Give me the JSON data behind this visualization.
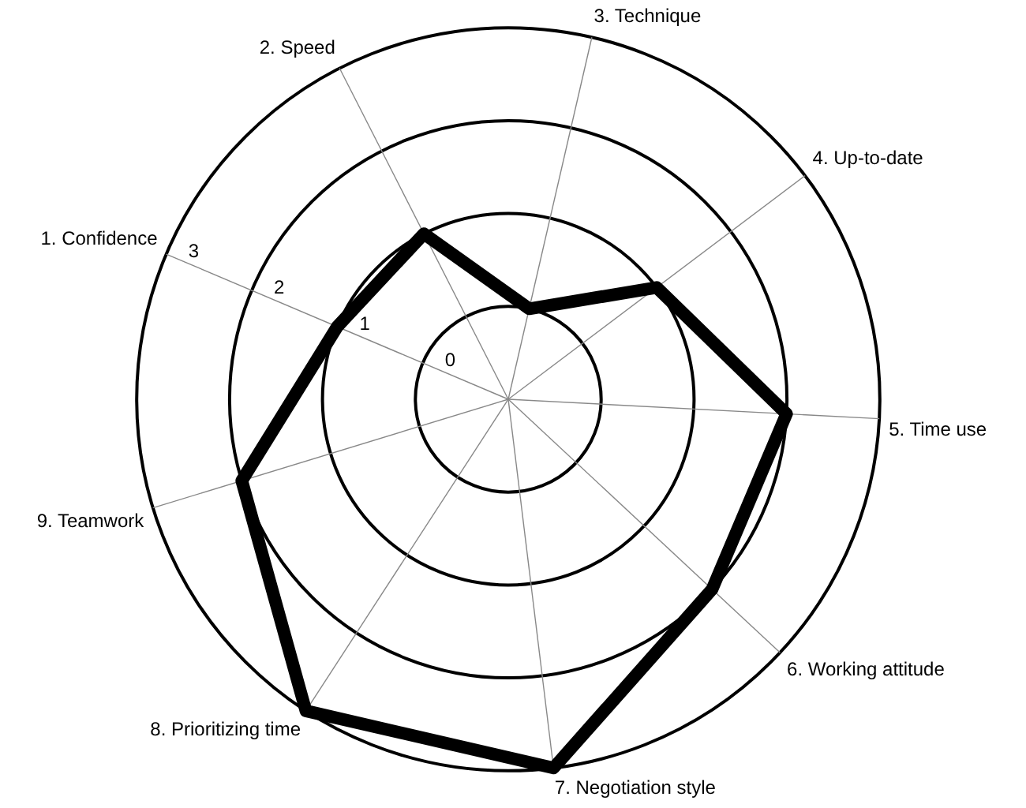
{
  "chart_data": {
    "type": "radar",
    "categories": [
      "1. Confidence",
      "2. Speed",
      "3. Technique",
      "4. Up-to-date",
      "5. Time use",
      "6. Working attitude",
      "7. Negotiation style",
      "8. Prioritizing time",
      "9. Teamwork"
    ],
    "series": [
      {
        "color": "#000000",
        "values": [
          1,
          1,
          0,
          1,
          2,
          2,
          3,
          3,
          2
        ]
      }
    ],
    "ylim": [
      -1,
      3
    ],
    "yticks": [
      0,
      1,
      2,
      3
    ],
    "grid": true,
    "legend": false,
    "marker": "none"
  }
}
